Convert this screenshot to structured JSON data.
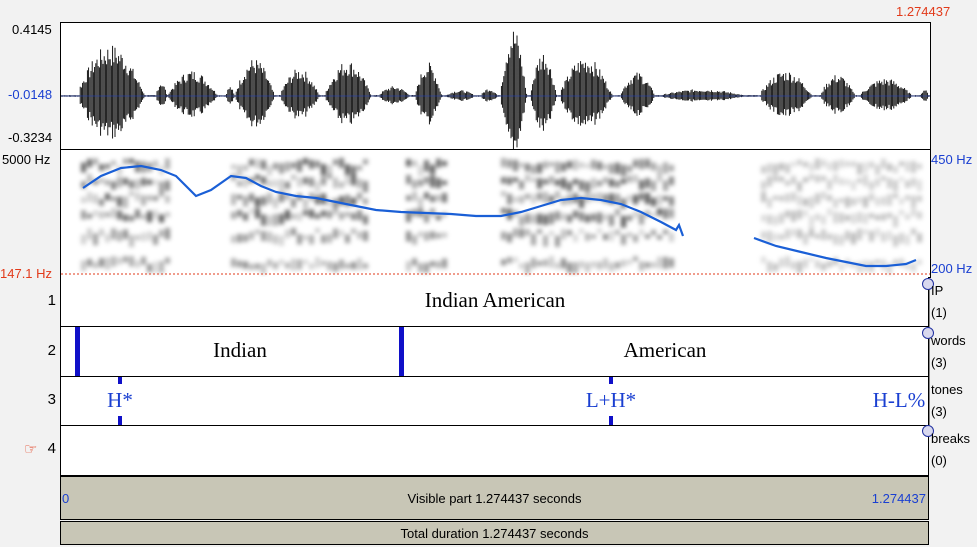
{
  "top_right_time": "1.274437",
  "waveform": {
    "y_max": "0.4145",
    "y_mid": "-0.0148",
    "y_min": "-0.3234"
  },
  "spectrogram": {
    "freq_top": "5000 Hz",
    "pitch_floor": "147.1 Hz",
    "pitch_top": "450 Hz",
    "pitch_bottom": "200 Hz"
  },
  "tiers": [
    {
      "number": "1",
      "name": "IP",
      "count": "(1)",
      "intervals": [
        "Indian American"
      ]
    },
    {
      "number": "2",
      "name": "words",
      "count": "(3)",
      "intervals": [
        "Indian",
        "American"
      ]
    },
    {
      "number": "3",
      "name": "tones",
      "count": "(3)",
      "points": [
        "H*",
        "L+H*",
        "H-L%"
      ]
    },
    {
      "number": "4",
      "name": "breaks",
      "count": "(0)",
      "selected_marker": "☞",
      "points": []
    }
  ],
  "bottom": {
    "visible_start": "0",
    "visible_text": "Visible part 1.274437 seconds",
    "visible_end": "1.274437",
    "total_text": "Total duration 1.274437 seconds"
  },
  "colors": {
    "pitch_contour": "#1a5fd6",
    "boundary": "#1010c8",
    "selection_red": "#e23a1a"
  }
}
